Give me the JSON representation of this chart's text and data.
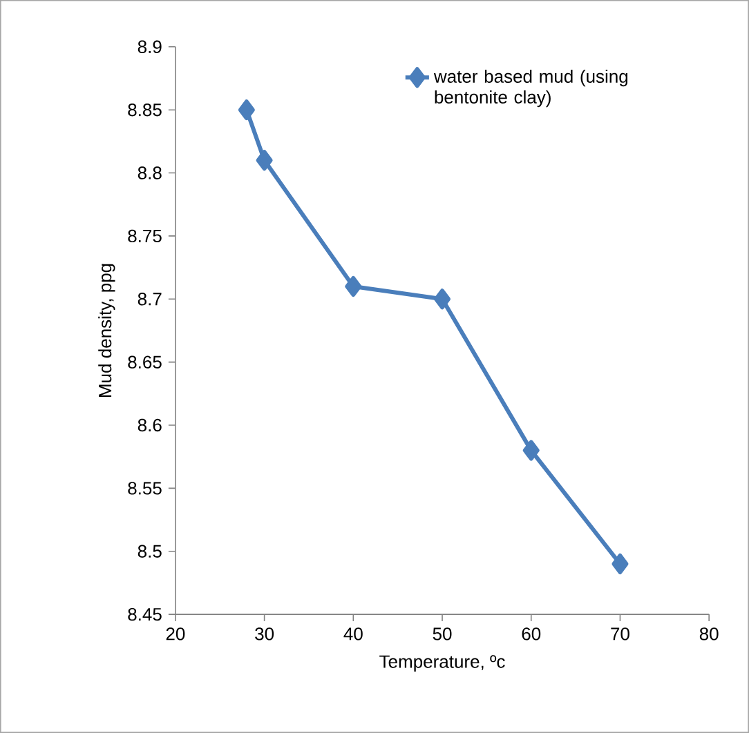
{
  "chart_data": {
    "type": "line",
    "xlabel": "Temperature,  ºc",
    "ylabel": "Mud density, ppg",
    "series": [
      {
        "name": "water based mud (using bentonite clay)",
        "color": "#4a7ebb",
        "x": [
          28,
          30,
          40,
          50,
          60,
          70
        ],
        "values": [
          8.85,
          8.81,
          8.71,
          8.7,
          8.58,
          8.49
        ]
      }
    ],
    "xlim": [
      20,
      80
    ],
    "xticks": [
      20,
      30,
      40,
      50,
      60,
      70,
      80
    ],
    "ylim": [
      8.45,
      8.9
    ],
    "yticks": [
      8.45,
      8.5,
      8.55,
      8.6,
      8.65,
      8.7,
      8.75,
      8.8,
      8.85,
      8.9
    ],
    "marker": "diamond",
    "line_style": "solid",
    "legend": "top right",
    "grid": false
  }
}
